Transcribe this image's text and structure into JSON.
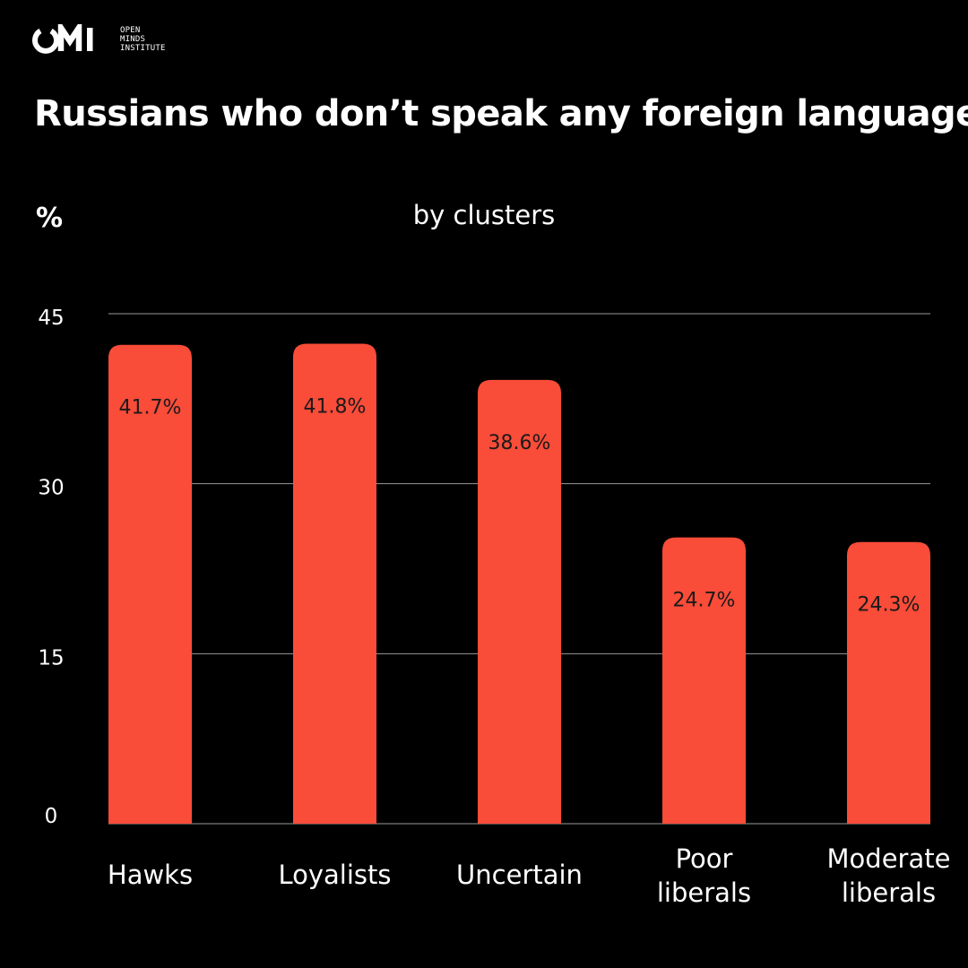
{
  "logo": {
    "brand": "OMI",
    "lines": [
      "OPEN",
      "MINDS",
      "INSTITUTE"
    ]
  },
  "colors": {
    "background": "#000000",
    "text": "#ffffff",
    "bar": "#f94c39",
    "bar_label": "#1a1a1a",
    "grid": "#9a9a9a"
  },
  "chart_data": {
    "type": "bar",
    "title": "Russians who don’t speak any foreign language",
    "subtitle": "by clusters",
    "ylabel": "%",
    "xlabel": "",
    "ylim": [
      0,
      45
    ],
    "yticks": [
      0,
      15,
      30,
      45
    ],
    "grid": true,
    "categories": [
      "Hawks",
      "Loyalists",
      "Uncertain",
      "Poor liberals",
      "Moderate liberals"
    ],
    "category_lines": [
      [
        "Hawks"
      ],
      [
        "Loyalists"
      ],
      [
        "Uncertain"
      ],
      [
        "Poor",
        "liberals"
      ],
      [
        "Moderate",
        "liberals"
      ]
    ],
    "values": [
      41.7,
      41.8,
      38.6,
      24.7,
      24.3
    ],
    "data_labels": [
      "41.7%",
      "41.8%",
      "38.6%",
      "24.7%",
      "24.3%"
    ]
  }
}
